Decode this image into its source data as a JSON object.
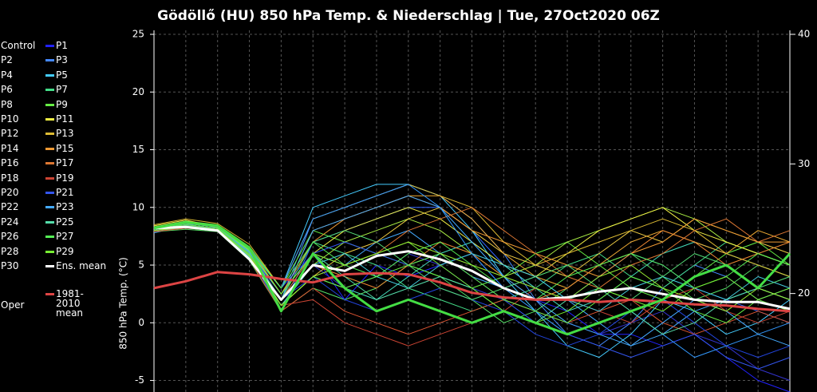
{
  "chart_data": {
    "type": "line",
    "title": "Gödöllő  (HU)  850 hPa Temp. & Niederschlag | Tue, 27Oct2020 06Z",
    "y_label": "850 hPa Temp. (°C)",
    "categories": [
      null,
      null,
      null,
      null,
      null,
      null,
      null,
      null,
      null,
      null,
      null,
      null,
      null,
      null,
      null,
      null,
      null,
      null,
      null,
      null,
      null
    ],
    "ylim": [
      -6,
      25
    ],
    "yticks": [
      -5,
      0,
      5,
      10,
      15,
      20,
      25
    ],
    "y2lim": [
      12.4,
      40
    ],
    "y2ticks": [
      20,
      30,
      40
    ],
    "grid": true,
    "series": [
      {
        "name": "Control",
        "color": "#3333cc",
        "values": [
          8,
          8.5,
          8.2,
          6,
          2,
          5,
          3,
          4,
          6,
          5,
          3,
          2,
          1,
          0,
          -1,
          0,
          1,
          -1,
          -2,
          -4,
          -5
        ]
      },
      {
        "name": "P1",
        "color": "#2222ff",
        "values": [
          8,
          8.3,
          8.1,
          6.5,
          3,
          6,
          2,
          5,
          4,
          5,
          6,
          3,
          2,
          1,
          -1,
          -1,
          -2,
          -1,
          -3,
          -5,
          -6
        ]
      },
      {
        "name": "P2",
        "color": "#3366ff",
        "values": [
          8.2,
          8.6,
          8,
          5.8,
          1,
          7,
          8,
          9,
          10,
          10,
          8,
          5,
          3,
          2,
          4,
          6,
          5,
          3,
          2,
          1,
          0
        ]
      },
      {
        "name": "P3",
        "color": "#4488ff",
        "values": [
          8,
          8.2,
          8.3,
          6.2,
          2,
          9,
          10,
          11,
          12,
          11,
          9,
          6,
          2,
          -1,
          -2,
          0,
          3,
          5,
          4,
          2,
          3
        ]
      },
      {
        "name": "P4",
        "color": "#44aaff",
        "values": [
          7.8,
          8.4,
          8.1,
          5.5,
          2,
          6,
          5,
          7,
          8,
          6,
          4,
          3,
          4,
          2,
          0,
          -2,
          -1,
          1,
          2,
          3,
          2
        ]
      },
      {
        "name": "P5",
        "color": "#44ccff",
        "values": [
          8.1,
          8.7,
          8.4,
          6.4,
          3,
          10,
          11,
          12,
          12,
          11,
          8,
          4,
          1,
          -2,
          -3,
          -1,
          2,
          1,
          -1,
          0,
          2
        ]
      },
      {
        "name": "P6",
        "color": "#44ddbb",
        "values": [
          8,
          8.2,
          8,
          5.7,
          1.5,
          4,
          3,
          2,
          4,
          6,
          7,
          5,
          3,
          1,
          2,
          4,
          6,
          7,
          6,
          5,
          4
        ]
      },
      {
        "name": "P7",
        "color": "#44dd88",
        "values": [
          8.3,
          8.5,
          8.2,
          6.1,
          2.5,
          7,
          6,
          5,
          3,
          2,
          1,
          2,
          3,
          5,
          6,
          4,
          3,
          5,
          7,
          6,
          5
        ]
      },
      {
        "name": "P8",
        "color": "#55e066",
        "values": [
          7.9,
          8.1,
          7.9,
          5.4,
          1,
          3,
          2,
          3,
          5,
          4,
          2,
          0,
          1,
          3,
          5,
          6,
          4,
          2,
          3,
          5,
          4
        ]
      },
      {
        "name": "P9",
        "color": "#66ee44",
        "values": [
          8.2,
          8.8,
          8.5,
          6.6,
          3,
          8,
          7,
          6,
          5,
          4,
          3,
          4,
          6,
          7,
          5,
          3,
          2,
          4,
          6,
          7,
          5
        ]
      },
      {
        "name": "P10",
        "color": "#aaee44",
        "values": [
          8,
          8.4,
          8,
          5.9,
          2,
          5,
          7,
          8,
          9,
          8,
          6,
          4,
          5,
          7,
          8,
          9,
          10,
          9,
          7,
          6,
          5
        ]
      },
      {
        "name": "P11",
        "color": "#eeee44",
        "values": [
          8.4,
          8.9,
          8.3,
          6.3,
          2.5,
          6,
          8,
          9,
          10,
          9,
          7,
          5,
          4,
          6,
          8,
          9,
          10,
          8,
          7,
          6,
          5
        ]
      },
      {
        "name": "P12",
        "color": "#eecc44",
        "values": [
          8,
          8.3,
          8.1,
          5.6,
          1.5,
          4,
          6,
          7,
          9,
          10,
          8,
          6,
          5,
          4,
          6,
          8,
          7,
          9,
          8,
          7,
          6
        ]
      },
      {
        "name": "P13",
        "color": "#ddbb33",
        "values": [
          8.5,
          9,
          8.6,
          6.8,
          3,
          9,
          10,
          11,
          12,
          11,
          10,
          7,
          5,
          6,
          7,
          8,
          9,
          8,
          6,
          5,
          4
        ]
      },
      {
        "name": "P14",
        "color": "#eeaa33",
        "values": [
          8.1,
          8.5,
          8.2,
          6,
          2,
          8,
          9,
          10,
          11,
          11,
          9,
          6,
          4,
          3,
          5,
          7,
          8,
          7,
          6,
          8,
          7
        ]
      },
      {
        "name": "P15",
        "color": "#ee9933",
        "values": [
          8.3,
          8.7,
          8.4,
          6.5,
          2.5,
          7,
          9,
          10,
          11,
          10,
          8,
          7,
          6,
          5,
          4,
          6,
          7,
          9,
          8,
          7,
          7
        ]
      },
      {
        "name": "P16",
        "color": "#ee8833",
        "values": [
          8,
          8.4,
          8.2,
          5.8,
          1.5,
          5,
          4,
          3,
          5,
          7,
          6,
          4,
          2,
          3,
          5,
          6,
          8,
          7,
          5,
          6,
          7
        ]
      },
      {
        "name": "P17",
        "color": "#dd7733",
        "values": [
          8.2,
          8.6,
          8.3,
          6.2,
          2,
          6,
          5,
          6,
          8,
          9,
          10,
          8,
          6,
          4,
          3,
          5,
          6,
          8,
          9,
          7,
          8
        ]
      },
      {
        "name": "P18",
        "color": "#dd5533",
        "values": [
          7.9,
          8.2,
          8,
          5.5,
          1,
          3,
          1,
          0,
          -1,
          0,
          1,
          2,
          1,
          0,
          1,
          2,
          0,
          -1,
          0,
          1,
          0
        ]
      },
      {
        "name": "P19",
        "color": "#cc4433",
        "values": [
          8,
          8.3,
          8.1,
          5.9,
          1.5,
          2,
          0,
          -1,
          -2,
          -1,
          0,
          1,
          3,
          2,
          1,
          0,
          2,
          3,
          1,
          0,
          1
        ]
      },
      {
        "name": "P20",
        "color": "#2244dd",
        "values": [
          8.1,
          8.5,
          8.2,
          6.1,
          2,
          4,
          2,
          1,
          2,
          3,
          2,
          1,
          -1,
          -2,
          -1,
          1,
          2,
          0,
          -2,
          -3,
          -2
        ]
      },
      {
        "name": "P21",
        "color": "#3355ee",
        "values": [
          8,
          8.4,
          8.1,
          6,
          2.5,
          6,
          7,
          6,
          5,
          6,
          4,
          2,
          0,
          -1,
          -2,
          -3,
          -2,
          -1,
          -3,
          -4,
          -3
        ]
      },
      {
        "name": "P22",
        "color": "#3399ff",
        "values": [
          8.2,
          8.7,
          8.3,
          6.3,
          3,
          9,
          10,
          11,
          12,
          10,
          6,
          3,
          1,
          -1,
          0,
          1,
          -1,
          -3,
          -2,
          -1,
          0
        ]
      },
      {
        "name": "P23",
        "color": "#44aaff",
        "values": [
          8.1,
          8.5,
          8.2,
          6.1,
          2,
          8,
          9,
          10,
          11,
          10,
          7,
          4,
          2,
          0,
          -1,
          -2,
          0,
          2,
          1,
          -1,
          -2
        ]
      },
      {
        "name": "P24",
        "color": "#44ccdd",
        "values": [
          8,
          8.3,
          8,
          5.7,
          1.5,
          5,
          6,
          4,
          3,
          5,
          6,
          5,
          4,
          2,
          1,
          3,
          4,
          3,
          2,
          4,
          3
        ]
      },
      {
        "name": "P25",
        "color": "#55ddaa",
        "values": [
          8.2,
          8.6,
          8.3,
          6.2,
          2.5,
          6,
          4,
          2,
          3,
          4,
          3,
          1,
          0,
          2,
          3,
          1,
          -1,
          0,
          2,
          3,
          2
        ]
      },
      {
        "name": "P26",
        "color": "#55dd77",
        "values": [
          8,
          8.4,
          8.1,
          5.9,
          2,
          7,
          8,
          7,
          5,
          3,
          2,
          3,
          4,
          5,
          3,
          2,
          4,
          6,
          5,
          3,
          4
        ]
      },
      {
        "name": "P27",
        "color": "#55ee55",
        "values": [
          8.3,
          8.8,
          8.4,
          6.4,
          3,
          7,
          5,
          4,
          6,
          7,
          5,
          3,
          2,
          4,
          5,
          6,
          5,
          3,
          4,
          6,
          5
        ]
      },
      {
        "name": "P28",
        "color": "#66ee44",
        "values": [
          8.1,
          8.5,
          8.2,
          6,
          1.5,
          4,
          3,
          4,
          5,
          6,
          4,
          2,
          1,
          0,
          2,
          4,
          3,
          1,
          0,
          2,
          1
        ]
      },
      {
        "name": "P29",
        "color": "#77ee33",
        "values": [
          8.2,
          8.7,
          8.3,
          6.3,
          2.5,
          6,
          5,
          6,
          7,
          5,
          3,
          1,
          0,
          1,
          3,
          2,
          1,
          3,
          4,
          2,
          3
        ]
      },
      {
        "name": "P30",
        "color": "#99ee33",
        "values": [
          8,
          8.3,
          8.1,
          5.8,
          1.5,
          4,
          5,
          6,
          7,
          6,
          5,
          4,
          3,
          2,
          4,
          5,
          3,
          2,
          1,
          3,
          2
        ]
      },
      {
        "name": "Ens. mean",
        "color": "#ffffff",
        "values": [
          8.2,
          8.3,
          8,
          5.5,
          2,
          5,
          4.5,
          5.8,
          6.2,
          5.5,
          4.5,
          3,
          2,
          2.2,
          2.7,
          3,
          2.5,
          2,
          1.8,
          1.8,
          1.2
        ]
      },
      {
        "name": "1981-2010 mean",
        "color": "#dd4444",
        "values": [
          3,
          3.6,
          4.4,
          4.2,
          3.8,
          3.5,
          4.2,
          4.3,
          4.2,
          3.5,
          2.6,
          2.2,
          2,
          2,
          1.8,
          2,
          1.8,
          1.6,
          1.5,
          1.2,
          1
        ]
      },
      {
        "name": "Oper",
        "color": "#44dd44",
        "values": [
          8.2,
          8.7,
          8.4,
          6.5,
          1,
          6,
          3,
          1,
          2,
          1,
          0,
          1,
          0,
          -1,
          0,
          1,
          2,
          4,
          5,
          3,
          6
        ]
      }
    ]
  }
}
